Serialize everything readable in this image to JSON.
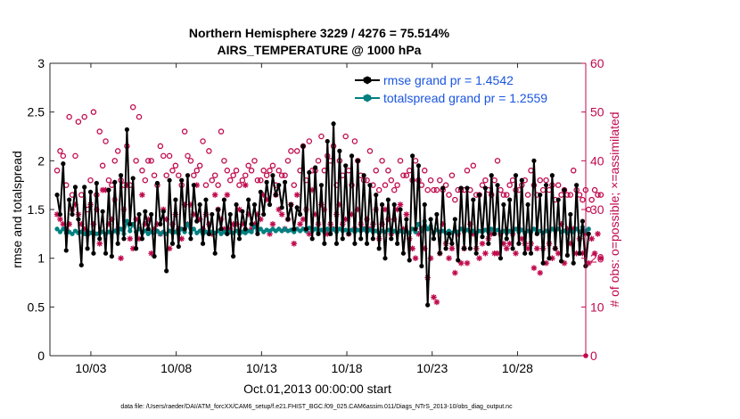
{
  "chart_data": {
    "type": "line",
    "title": "Northern Hemisphere 3229 / 4276 = 75.514%",
    "subtitle": "AIRS_TEMPERATURE @ 1000 hPa",
    "xlabel": "Oct.01,2013 00:00:00 start",
    "ylabel": "rmse and totalspread",
    "y2label": "# of obs: o=possible; ×=assimilated",
    "footer": "data file: /Users/raeder/DAI/ATM_forcXX/CAM6_setup/f.e21.FHIST_BGC.f09_025.CAM6assim.011/Diags_NTrS_2013-10/obs_diag_output.nc",
    "xlim": [
      0.6,
      32.0
    ],
    "ylim": [
      0,
      3
    ],
    "y2lim": [
      0,
      60
    ],
    "x_tick_values": [
      3,
      8,
      13,
      18,
      23,
      28
    ],
    "x_tick_labels": [
      "10/03",
      "10/08",
      "10/13",
      "10/18",
      "10/23",
      "10/28"
    ],
    "y_ticks": [
      0,
      0.5,
      1,
      1.5,
      2,
      2.5,
      3
    ],
    "y_tick_labels": [
      "0",
      "0.5",
      "1",
      "1.5",
      "2",
      "2.5",
      "3"
    ],
    "y2_ticks": [
      0,
      10,
      20,
      30,
      40,
      50,
      60
    ],
    "y2_tick_labels": [
      "0",
      "10",
      "20",
      "30",
      "40",
      "50",
      "60"
    ],
    "legend_position": "top-right",
    "series": [
      {
        "name": "rmse grand pr = 1.4542",
        "color": "#000000",
        "values": [
          1.65,
          1.45,
          1.97,
          1.08,
          1.6,
          1.45,
          1.73,
          1.4,
          0.93,
          1.73,
          1.1,
          1.68,
          1.05,
          1.77,
          1.2,
          1.48,
          1.05,
          1.7,
          1.02,
          1.78,
          1.15,
          1.85,
          1.2,
          2.32,
          1.35,
          1.82,
          1.1,
          1.45,
          1.2,
          1.48,
          1.3,
          1.45,
          1.02,
          1.77,
          1.35,
          1.48,
          0.87,
          1.8,
          1.15,
          1.6,
          1.12,
          1.8,
          1.3,
          1.85,
          1.2,
          1.75,
          1.38,
          1.55,
          1.15,
          1.6,
          1.25,
          1.45,
          1.05,
          1.5,
          1.3,
          1.6,
          1.25,
          1.45,
          1.02,
          1.55,
          1.2,
          1.48,
          1.3,
          1.6,
          1.35,
          1.55,
          1.25,
          1.68,
          1.45,
          1.78,
          1.55,
          1.85,
          1.65,
          1.75,
          1.52,
          1.78,
          1.4,
          1.55,
          1.3,
          1.52,
          1.45,
          2.15,
          1.3,
          1.88,
          1.2,
          1.93,
          1.25,
          1.75,
          1.15,
          2.2,
          1.25,
          2.38,
          1.15,
          2.1,
          1.2,
          1.95,
          1.25,
          2.05,
          1.15,
          2.0,
          1.2,
          1.85,
          1.15,
          1.75,
          1.2,
          1.65,
          1.1,
          1.55,
          1.0,
          1.6,
          1.2,
          1.55,
          1.15,
          1.5,
          1.05,
          1.4,
          0.98,
          2.05,
          1.3,
          1.95,
          0.92,
          1.55,
          0.52,
          1.4,
          1.2,
          1.45,
          1.05,
          1.72,
          1.1,
          1.25,
          1.15,
          1.4,
          0.98,
          1.72,
          1.1,
          1.72,
          1.1,
          1.6,
          1.05,
          1.65,
          1.22,
          1.72,
          1.15,
          1.85,
          1.25,
          1.75,
          1.0,
          1.55,
          1.2,
          1.6,
          1.1,
          1.85,
          1.15,
          1.8,
          1.05,
          1.55,
          1.05,
          2.0,
          1.25,
          1.65,
          0.95,
          1.75,
          1.0,
          1.85,
          1.1,
          1.6,
          0.97,
          1.7,
          1.03,
          1.45,
          0.95,
          1.75,
          1.05,
          1.38,
          0.92,
          1.25
        ]
      },
      {
        "name": "totalspread grand pr = 1.2559",
        "color": "#008080",
        "values": [
          1.3,
          1.27,
          1.3,
          1.26,
          1.27,
          1.25,
          1.28,
          1.26,
          1.27,
          1.25,
          1.28,
          1.26,
          1.27,
          1.25,
          1.26,
          1.27,
          1.25,
          1.27,
          1.26,
          1.28,
          1.26,
          1.3,
          1.25,
          1.38,
          1.28,
          1.35,
          1.27,
          1.3,
          1.26,
          1.28,
          1.25,
          1.27,
          1.26,
          1.28,
          1.25,
          1.27,
          1.25,
          1.28,
          1.26,
          1.27,
          1.25,
          1.3,
          1.27,
          1.35,
          1.26,
          1.3,
          1.26,
          1.28,
          1.25,
          1.27,
          1.25,
          1.27,
          1.26,
          1.28,
          1.25,
          1.27,
          1.25,
          1.27,
          1.26,
          1.28,
          1.25,
          1.27,
          1.26,
          1.28,
          1.27,
          1.32,
          1.28,
          1.3,
          1.27,
          1.29,
          1.28,
          1.3,
          1.28,
          1.3,
          1.28,
          1.3,
          1.28,
          1.29,
          1.27,
          1.3,
          1.28,
          1.3,
          1.28,
          1.31,
          1.28,
          1.3,
          1.27,
          1.29,
          1.27,
          1.3,
          1.28,
          1.3,
          1.27,
          1.3,
          1.28,
          1.29,
          1.27,
          1.29,
          1.27,
          1.29,
          1.28,
          1.3,
          1.27,
          1.29,
          1.27,
          1.28,
          1.26,
          1.28,
          1.27,
          1.29,
          1.27,
          1.28,
          1.26,
          1.28,
          1.27,
          1.28,
          1.26,
          1.3,
          1.27,
          1.35,
          1.28,
          1.38,
          1.3,
          1.33,
          1.26,
          1.29,
          1.27,
          1.28,
          1.26,
          1.28,
          1.26,
          1.28,
          1.27,
          1.3,
          1.27,
          1.29,
          1.27,
          1.28,
          1.26,
          1.28,
          1.27,
          1.29,
          1.27,
          1.3,
          1.28,
          1.29,
          1.27,
          1.28,
          1.26,
          1.28,
          1.27,
          1.3,
          1.27,
          1.29,
          1.26,
          1.28,
          1.27,
          1.3,
          1.27,
          1.28,
          1.26,
          1.28,
          1.27,
          1.3,
          1.28,
          1.3,
          1.27,
          1.28,
          1.26,
          1.28,
          1.27,
          1.3,
          1.27,
          1.32,
          1.28,
          1.3
        ]
      },
      {
        "name": "possible",
        "axis": "right",
        "marker": "circle",
        "color": "#c0094d",
        "values": [
          38,
          42,
          41,
          35,
          49,
          33,
          41,
          48,
          33,
          49,
          30,
          36,
          50,
          33,
          46,
          39,
          44,
          36,
          35,
          40,
          42,
          36,
          35,
          43,
          35,
          51,
          40,
          49,
          38,
          36,
          40,
          40,
          37,
          35,
          43,
          41,
          37,
          41,
          38,
          39,
          37,
          35,
          46,
          41,
          40,
          37,
          38,
          39,
          44,
          35,
          42,
          36,
          37,
          35,
          46,
          40,
          38,
          36,
          37,
          38,
          35,
          36,
          37,
          39,
          38,
          40,
          36,
          36,
          38,
          37,
          38,
          39,
          35,
          38,
          37,
          37,
          40,
          42,
          35,
          42,
          38,
          43,
          36,
          44,
          38,
          38,
          40,
          45,
          38,
          41,
          40,
          43,
          35,
          40,
          37,
          45,
          38,
          35,
          44,
          40,
          37,
          36,
          36,
          42,
          35,
          38,
          34,
          40,
          35,
          38,
          36,
          34,
          35,
          40,
          37,
          37,
          38,
          36,
          40,
          36,
          35,
          38,
          34,
          36,
          34,
          34,
          36,
          34,
          35,
          33,
          37,
          32,
          34,
          34,
          34,
          38,
          34,
          39,
          33,
          33,
          35,
          36,
          34,
          33,
          36,
          40,
          34,
          33,
          33,
          35,
          36,
          34,
          34,
          35,
          36,
          33,
          38,
          35,
          33,
          36,
          34,
          36,
          34,
          35,
          32,
          35,
          33,
          34,
          33,
          33,
          38,
          34,
          33,
          32,
          34,
          30,
          32,
          34,
          33,
          33
        ]
      },
      {
        "name": "assimilated",
        "axis": "right",
        "marker": "asterisk",
        "color": "#c0094d",
        "values": [
          29,
          28,
          27,
          26,
          27,
          30,
          31,
          29,
          27,
          26,
          25,
          31,
          27,
          30,
          23,
          34,
          34,
          27,
          28,
          32,
          26,
          20,
          30,
          35,
          24,
          22,
          28,
          24,
          33,
          27,
          28,
          21,
          26,
          27,
          25,
          30,
          28,
          22,
          27,
          29,
          26,
          24,
          31,
          27,
          31,
          29,
          35,
          28,
          26,
          29,
          27,
          25,
          33,
          30,
          28,
          26,
          33,
          26,
          27,
          27,
          30,
          27,
          35,
          29,
          26,
          27,
          29,
          28,
          33,
          32,
          25,
          27,
          33,
          30,
          29,
          26,
          28,
          31,
          23,
          33,
          27,
          28,
          30,
          25,
          34,
          29,
          27,
          31,
          30,
          25,
          27,
          26,
          29,
          31,
          27,
          28,
          25,
          29,
          26,
          30,
          27,
          26,
          28,
          26,
          27,
          30,
          24,
          27,
          30,
          28,
          25,
          28,
          30,
          31,
          26,
          29,
          24,
          22,
          20,
          25,
          26,
          22,
          16,
          20,
          12,
          11,
          21,
          27,
          23,
          20,
          22,
          17,
          25,
          19,
          22,
          19,
          27,
          25,
          22,
          20,
          23,
          21,
          24,
          25,
          21,
          21,
          25,
          23,
          22,
          23,
          25,
          21,
          26,
          24,
          23,
          22,
          23,
          18,
          22,
          17,
          22,
          19,
          23,
          20,
          22,
          21,
          27,
          19,
          26,
          23,
          26,
          21,
          24,
          21,
          25,
          19,
          24,
          21,
          25,
          20
        ]
      }
    ]
  }
}
